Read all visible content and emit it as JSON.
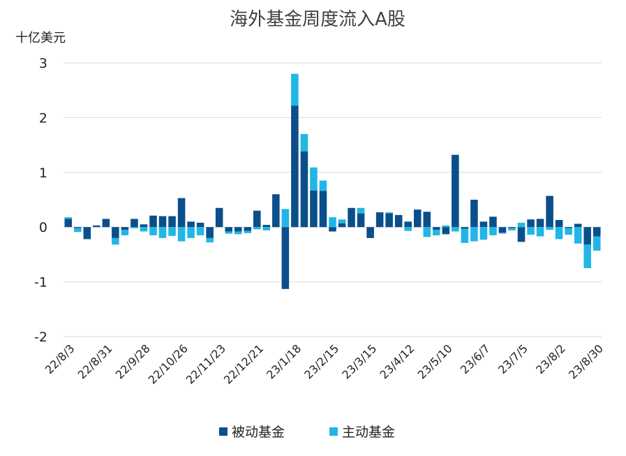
{
  "chart_data": {
    "type": "bar",
    "stacked": true,
    "title": "海外基金周度流入A股",
    "unit_label": "十亿美元",
    "ylim": [
      -2,
      3
    ],
    "yticks": [
      3,
      2,
      1,
      0,
      -1,
      -2
    ],
    "ytick_labels": [
      "3",
      "2",
      "1",
      "0",
      "-1",
      "-2"
    ],
    "grid": "horizontal",
    "legend_position": "bottom",
    "x": [
      "22/8/3",
      "22/8/10",
      "22/8/17",
      "22/8/24",
      "22/8/31",
      "22/9/7",
      "22/9/14",
      "22/9/21",
      "22/9/28",
      "22/10/5",
      "22/10/12",
      "22/10/19",
      "22/10/26",
      "22/11/2",
      "22/11/9",
      "22/11/16",
      "22/11/23",
      "22/11/30",
      "22/12/7",
      "22/12/14",
      "22/12/21",
      "22/12/28",
      "23/1/4",
      "23/1/11",
      "23/1/18",
      "23/1/25",
      "23/2/1",
      "23/2/8",
      "23/2/15",
      "23/2/22",
      "23/3/1",
      "23/3/8",
      "23/3/15",
      "23/3/22",
      "23/3/29",
      "23/4/5",
      "23/4/12",
      "23/4/19",
      "23/4/26",
      "23/5/3",
      "23/5/10",
      "23/5/17",
      "23/5/24",
      "23/5/31",
      "23/6/7",
      "23/6/14",
      "23/6/21",
      "23/6/28",
      "23/7/5",
      "23/7/12",
      "23/7/19",
      "23/7/26",
      "23/8/2",
      "23/8/9",
      "23/8/16",
      "23/8/23",
      "23/8/30"
    ],
    "xtick_labels": [
      "22/8/3",
      "22/8/31",
      "22/9/28",
      "22/10/26",
      "22/11/23",
      "22/12/21",
      "23/1/18",
      "23/2/15",
      "23/3/15",
      "23/4/12",
      "23/5/10",
      "23/6/7",
      "23/7/5",
      "23/8/2",
      "23/8/30"
    ],
    "series": [
      {
        "name": "被动基金",
        "color": "#0b4f8a",
        "values": [
          0.15,
          -0.02,
          -0.22,
          0.03,
          0.15,
          -0.2,
          -0.05,
          0.15,
          0.05,
          0.21,
          0.2,
          0.2,
          0.53,
          0.1,
          0.08,
          -0.2,
          0.35,
          -0.08,
          -0.08,
          -0.07,
          0.3,
          0.04,
          0.6,
          -1.13,
          2.22,
          1.38,
          0.67,
          0.66,
          -0.08,
          0.07,
          0.35,
          0.25,
          -0.2,
          0.27,
          0.25,
          0.22,
          0.1,
          0.32,
          0.28,
          -0.05,
          -0.13,
          1.32,
          -0.03,
          0.5,
          0.1,
          0.19,
          -0.1,
          -0.02,
          -0.27,
          0.14,
          0.15,
          0.57,
          0.13,
          -0.02,
          0.06,
          -0.32,
          -0.17
        ]
      },
      {
        "name": "主动基金",
        "color": "#21b6e5",
        "values": [
          0.03,
          -0.07,
          0.0,
          0.0,
          0.0,
          -0.12,
          -0.1,
          -0.02,
          -0.08,
          -0.15,
          -0.2,
          -0.16,
          -0.26,
          -0.2,
          -0.15,
          -0.08,
          0.0,
          -0.04,
          -0.05,
          -0.04,
          -0.04,
          -0.06,
          0.0,
          0.33,
          0.58,
          0.32,
          0.42,
          0.19,
          0.18,
          0.07,
          0.0,
          0.1,
          0.0,
          0.0,
          0.02,
          0.0,
          -0.07,
          0.0,
          -0.18,
          -0.1,
          0.03,
          -0.08,
          -0.26,
          -0.26,
          -0.23,
          -0.15,
          -0.02,
          -0.04,
          0.08,
          -0.14,
          -0.17,
          -0.05,
          -0.22,
          -0.12,
          -0.3,
          -0.43,
          -0.26
        ]
      }
    ]
  }
}
